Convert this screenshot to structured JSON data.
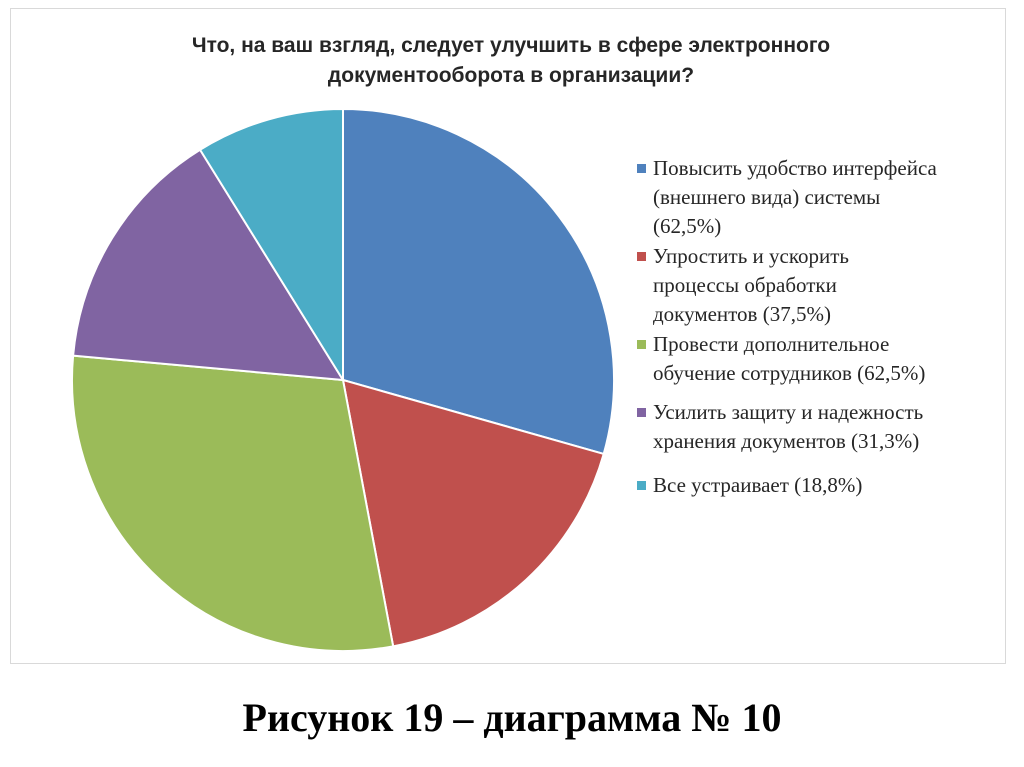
{
  "chart_data": {
    "type": "pie",
    "title": "Что, на ваш взгляд, следует улучшить в сфере электронного\nдокументооборота в организации?",
    "categories": [
      "Повысить удобство интерфейса\n(внешнего вида) системы\n(62,5%)",
      "Упростить и ускорить\nпроцессы обработки\nдокументов (37,5%)",
      "Провести дополнительное\nобучение сотрудников (62,5%)",
      "Усилить защиту и надежность\nхранения документов (31,3%)",
      "Все устраивает (18,8%)"
    ],
    "values": [
      62.5,
      37.5,
      62.5,
      31.3,
      18.8
    ],
    "colors": [
      "#4F81BD",
      "#C0504D",
      "#9BBB59",
      "#8064A2",
      "#4BACC6"
    ],
    "legend_position": "right",
    "start_angle_deg": 0,
    "direction": "clockwise"
  },
  "caption": "Рисунок 19 – диаграмма № 10"
}
